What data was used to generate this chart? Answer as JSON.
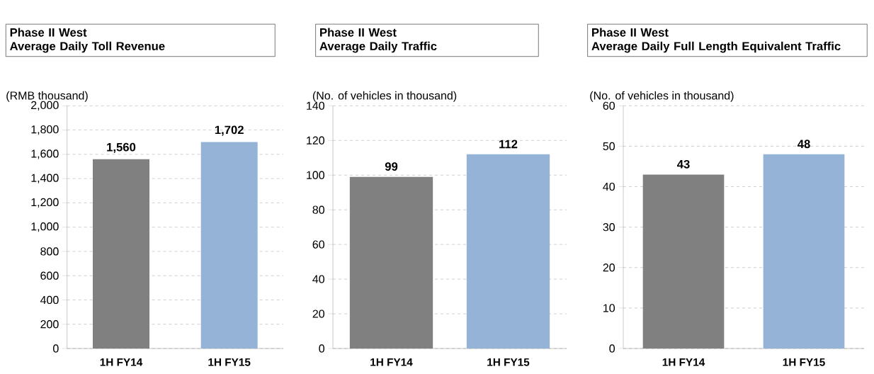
{
  "chart_data": [
    {
      "type": "bar",
      "title": "Phase II West",
      "subtitle": "Average Daily Toll Revenue",
      "ylabel": "(RMB thousand)",
      "categories": [
        "1H FY14",
        "1H FY15"
      ],
      "values": [
        1560,
        1702
      ],
      "colors": [
        "#808080",
        "#95b3d7"
      ],
      "value_labels": [
        "1,560",
        "1,702"
      ],
      "ylim": [
        0,
        2000
      ],
      "yticks": [
        0,
        200,
        400,
        600,
        800,
        {
          "value": 1000,
          "label": "1,000"
        },
        {
          "value": 1200,
          "label": "1,200"
        },
        {
          "value": 1400,
          "label": "1,400"
        },
        {
          "value": 1600,
          "label": "1,600"
        },
        {
          "value": 1800,
          "label": "1,800"
        },
        {
          "value": 2000,
          "label": "2,000"
        }
      ],
      "grid": "y"
    },
    {
      "type": "bar",
      "title": "Phase II West",
      "subtitle": "Average Daily Traffic",
      "ylabel": "(No. of vehicles in thousand)",
      "categories": [
        "1H FY14",
        "1H FY15"
      ],
      "values": [
        99,
        112
      ],
      "colors": [
        "#808080",
        "#95b3d7"
      ],
      "data_labels": true,
      "ylim": [
        0,
        140
      ],
      "yticks": [
        0,
        20,
        40,
        60,
        80,
        100,
        120,
        140
      ],
      "grid": "y"
    },
    {
      "type": "bar",
      "title": "Phase II West",
      "subtitle": "Average Daily Full Length Equivalent Traffic",
      "ylabel": "(No. of vehicles in thousand)",
      "categories": [
        "1H FY14",
        "1H FY15"
      ],
      "values": [
        43,
        48
      ],
      "colors": [
        "#808080",
        "#95b3d7"
      ],
      "data_labels": true,
      "ylim": [
        0,
        60
      ],
      "yticks": [
        0,
        10,
        20,
        30,
        40,
        50,
        60
      ],
      "grid": "y"
    }
  ]
}
